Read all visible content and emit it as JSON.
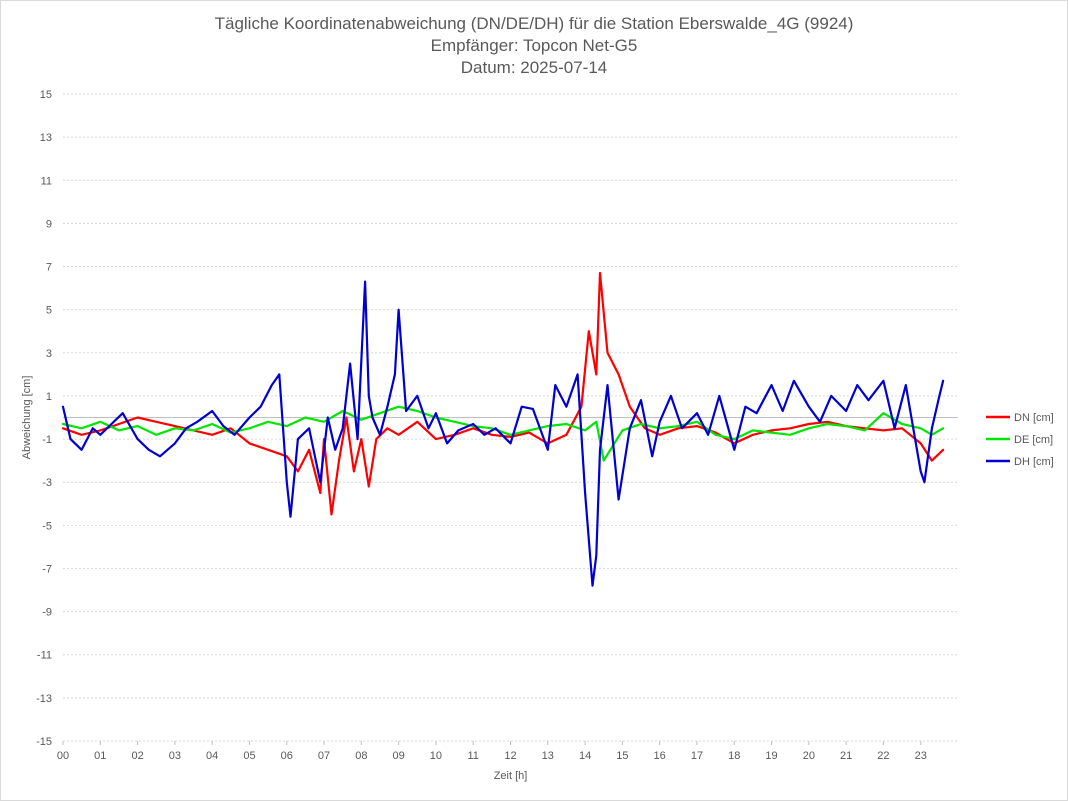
{
  "chart_data": {
    "type": "line",
    "title": [
      "Tägliche Koordinatenabweichung (DN/DE/DH) für die Station Eberswalde_4G (9924)",
      "Empfänger: Topcon Net-G5",
      "Datum: 2025-07-14"
    ],
    "xlabel": "Zeit [h]",
    "ylabel": "Abweichung [cm]",
    "xlim": [
      0,
      24
    ],
    "ylim": [
      -15,
      15
    ],
    "yticks": [
      15,
      13,
      11,
      9,
      7,
      5,
      3,
      1,
      -1,
      -3,
      -5,
      -7,
      -9,
      -11,
      -13,
      -15
    ],
    "xticks": [
      "00",
      "01",
      "02",
      "03",
      "04",
      "05",
      "06",
      "07",
      "08",
      "09",
      "10",
      "11",
      "12",
      "13",
      "14",
      "15",
      "16",
      "17",
      "18",
      "19",
      "20",
      "21",
      "22",
      "23"
    ],
    "grid": true,
    "legend_position": "right",
    "series": [
      {
        "name": "DN [cm]",
        "color": "#ff0000",
        "x": [
          0,
          0.5,
          1,
          1.5,
          2,
          2.5,
          3,
          3.5,
          4,
          4.5,
          5,
          5.5,
          6,
          6.3,
          6.6,
          6.9,
          7.0,
          7.2,
          7.4,
          7.6,
          7.8,
          8.0,
          8.2,
          8.4,
          8.7,
          9.0,
          9.5,
          10,
          10.5,
          11,
          11.5,
          12,
          12.5,
          13,
          13.5,
          13.9,
          14.1,
          14.3,
          14.4,
          14.6,
          14.9,
          15.2,
          15.6,
          16,
          16.5,
          17,
          17.5,
          18,
          18.5,
          19,
          19.5,
          20,
          20.5,
          21,
          21.5,
          22,
          22.5,
          23,
          23.3,
          23.6
        ],
        "y": [
          -0.5,
          -0.8,
          -0.6,
          -0.3,
          0,
          -0.2,
          -0.4,
          -0.6,
          -0.8,
          -0.5,
          -1.2,
          -1.5,
          -1.8,
          -2.5,
          -1.5,
          -3.5,
          -1,
          -4.5,
          -2,
          0,
          -2.5,
          -1,
          -3.2,
          -1,
          -0.5,
          -0.8,
          -0.2,
          -1,
          -0.8,
          -0.5,
          -0.8,
          -0.9,
          -0.7,
          -1.2,
          -0.8,
          0.5,
          4,
          2,
          6.7,
          3,
          2,
          0.5,
          -0.5,
          -0.8,
          -0.5,
          -0.4,
          -0.7,
          -1.2,
          -0.8,
          -0.6,
          -0.5,
          -0.3,
          -0.2,
          -0.4,
          -0.5,
          -0.6,
          -0.5,
          -1.2,
          -2,
          -1.5
        ]
      },
      {
        "name": "DE [cm]",
        "color": "#00e600",
        "x": [
          0,
          0.5,
          1,
          1.5,
          2,
          2.5,
          3,
          3.5,
          4,
          4.5,
          5,
          5.5,
          6,
          6.5,
          7,
          7.5,
          8,
          8.5,
          9,
          9.5,
          10,
          10.5,
          11,
          11.5,
          12,
          12.5,
          13,
          13.5,
          14,
          14.3,
          14.5,
          15,
          15.5,
          16,
          16.5,
          17,
          17.5,
          18,
          18.5,
          19,
          19.5,
          20,
          20.5,
          21,
          21.5,
          22,
          22.5,
          23,
          23.3,
          23.6
        ],
        "y": [
          -0.3,
          -0.5,
          -0.2,
          -0.6,
          -0.4,
          -0.8,
          -0.5,
          -0.6,
          -0.3,
          -0.7,
          -0.5,
          -0.2,
          -0.4,
          0,
          -0.2,
          0.3,
          -0.1,
          0.2,
          0.5,
          0.3,
          0,
          -0.2,
          -0.4,
          -0.5,
          -0.8,
          -0.6,
          -0.4,
          -0.3,
          -0.6,
          -0.2,
          -2,
          -0.6,
          -0.3,
          -0.5,
          -0.4,
          -0.2,
          -0.8,
          -1,
          -0.6,
          -0.7,
          -0.8,
          -0.5,
          -0.3,
          -0.4,
          -0.6,
          0.2,
          -0.3,
          -0.5,
          -0.8,
          -0.5
        ]
      },
      {
        "name": "DH [cm]",
        "color": "#0000d0",
        "x": [
          0,
          0.2,
          0.5,
          0.8,
          1,
          1.3,
          1.6,
          2,
          2.3,
          2.6,
          3,
          3.3,
          3.6,
          4,
          4.3,
          4.6,
          5,
          5.3,
          5.6,
          5.8,
          6,
          6.1,
          6.3,
          6.6,
          6.9,
          7.1,
          7.3,
          7.5,
          7.7,
          7.9,
          8.1,
          8.2,
          8.3,
          8.5,
          8.7,
          8.9,
          9.0,
          9.2,
          9.5,
          9.8,
          10,
          10.3,
          10.6,
          11,
          11.3,
          11.6,
          12,
          12.3,
          12.6,
          13,
          13.2,
          13.5,
          13.8,
          14.0,
          14.2,
          14.3,
          14.4,
          14.6,
          14.9,
          15.2,
          15.5,
          15.8,
          16,
          16.3,
          16.6,
          17,
          17.3,
          17.6,
          18,
          18.3,
          18.6,
          19,
          19.3,
          19.6,
          20,
          20.3,
          20.6,
          21,
          21.3,
          21.6,
          22,
          22.3,
          22.6,
          23,
          23.1,
          23.3,
          23.5,
          23.6
        ],
        "y": [
          0.5,
          -1,
          -1.5,
          -0.5,
          -0.8,
          -0.3,
          0.2,
          -1,
          -1.5,
          -1.8,
          -1.2,
          -0.5,
          -0.2,
          0.3,
          -0.4,
          -0.8,
          0,
          0.5,
          1.5,
          2,
          -3,
          -4.6,
          -1,
          -0.5,
          -3,
          0,
          -1.5,
          -0.5,
          2.5,
          -1,
          6.3,
          1,
          0,
          -0.8,
          0.5,
          2,
          5,
          0.3,
          1,
          -0.5,
          0.2,
          -1.2,
          -0.6,
          -0.3,
          -0.8,
          -0.5,
          -1.2,
          0.5,
          0.4,
          -1.5,
          1.5,
          0.5,
          2,
          -3.5,
          -7.8,
          -6.4,
          -1.5,
          1.5,
          -3.8,
          -0.5,
          0.8,
          -1.8,
          -0.2,
          1,
          -0.5,
          0.2,
          -0.8,
          1,
          -1.5,
          0.5,
          0.2,
          1.5,
          0.3,
          1.7,
          0.5,
          -0.2,
          1,
          0.3,
          1.5,
          0.8,
          1.7,
          -0.5,
          1.5,
          -2.5,
          -3,
          -0.5,
          1,
          1.7
        ]
      }
    ]
  }
}
